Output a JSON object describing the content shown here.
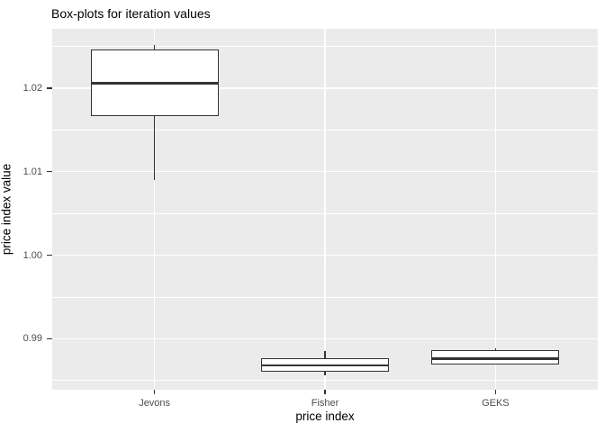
{
  "title": "Box-plots for iteration values",
  "chart_data": {
    "type": "boxplot",
    "title": "Box-plots for iteration values",
    "xlabel": "price index",
    "ylabel": "price index value",
    "categories": [
      "Jevons",
      "Fisher",
      "GEKS"
    ],
    "series": [
      {
        "name": "Jevons",
        "min": 1.009,
        "q1": 1.0167,
        "median": 1.0206,
        "q3": 1.0246,
        "max": 1.0252
      },
      {
        "name": "Fisher",
        "min": 0.9856,
        "q1": 0.9861,
        "median": 0.9868,
        "q3": 0.9877,
        "max": 0.9885
      },
      {
        "name": "GEKS",
        "min": 0.9869,
        "q1": 0.9869,
        "median": 0.9876,
        "q3": 0.9886,
        "max": 0.9889
      }
    ],
    "ylim": [
      0.9839,
      1.0271
    ],
    "y_major_ticks": [
      0.99,
      1.0,
      1.01,
      1.02
    ],
    "y_major_labels": [
      "0.99",
      "1.00",
      "1.01",
      "1.02"
    ],
    "y_minor_ticks": [
      0.985,
      0.995,
      1.005,
      1.015,
      1.025
    ],
    "grid": true,
    "legend": false,
    "box_width_fraction": 0.75
  },
  "colors": {
    "background": "#FFFFFF",
    "panel_bg": "#EBEBEB",
    "gridline": "#FFFFFF",
    "box_outline": "#333333",
    "box_fill": "#FFFFFF",
    "tick_label": "#4D4D4D",
    "text": "#000000"
  }
}
